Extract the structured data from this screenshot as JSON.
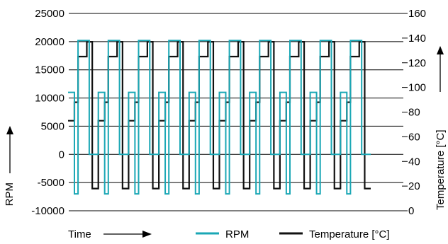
{
  "chart_data": {
    "type": "line",
    "x_axis": {
      "label": "Time",
      "ticks": []
    },
    "y_axis_left": {
      "label": "RPM",
      "range": [
        -10000,
        25000
      ],
      "ticks": [
        "-10000",
        "-5000",
        "0",
        "5000",
        "10000",
        "15000",
        "20000",
        "25000"
      ]
    },
    "y_axis_right": {
      "label": "Temperature [°C]",
      "range": [
        0,
        160
      ],
      "ticks": [
        "0",
        "20",
        "40",
        "60",
        "80",
        "100",
        "120",
        "140",
        "160"
      ]
    },
    "grid": true,
    "legend": {
      "placement": "bottom",
      "entries": [
        "RPM",
        "Temperature [°C]"
      ]
    },
    "colors": {
      "rpm": "#1aa7b5",
      "temperature": "#111111",
      "grid": "#000000"
    },
    "cycles": 10,
    "series": [
      {
        "name": "RPM",
        "axis": "left",
        "color": "#1aa7b5",
        "cycle_profile": [
          {
            "t": 0.0,
            "v": 11000
          },
          {
            "t": 0.21,
            "v": 11000
          },
          {
            "t": 0.21,
            "v": -7000
          },
          {
            "t": 0.33,
            "v": -7000
          },
          {
            "t": 0.33,
            "v": 20200
          },
          {
            "t": 0.7,
            "v": 20200
          },
          {
            "t": 0.7,
            "v": 0
          },
          {
            "t": 1.0,
            "v": 0
          }
        ]
      },
      {
        "name": "Temperature [°C]",
        "axis": "right",
        "color": "#111111",
        "cycle_profile": [
          {
            "t": 0.0,
            "v": 73
          },
          {
            "t": 0.21,
            "v": 73
          },
          {
            "t": 0.21,
            "v": 88
          },
          {
            "t": 0.33,
            "v": 88
          },
          {
            "t": 0.33,
            "v": 125
          },
          {
            "t": 0.62,
            "v": 125
          },
          {
            "t": 0.62,
            "v": 137
          },
          {
            "t": 0.8,
            "v": 137
          },
          {
            "t": 0.8,
            "v": 18
          },
          {
            "t": 1.0,
            "v": 18
          }
        ]
      }
    ]
  }
}
